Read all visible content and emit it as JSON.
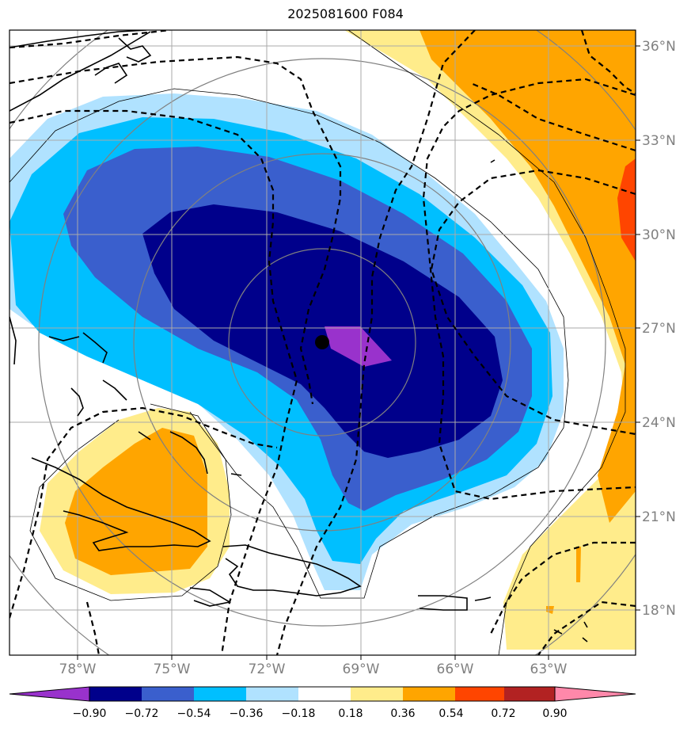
{
  "title": "2025081600 F084",
  "storm_center_marker": "filled-black-dot",
  "map": {
    "lon_range": [
      -81,
      -60.5
    ],
    "lat_range": [
      16.5,
      36.5
    ],
    "lon_ticks": [
      {
        "value": -78,
        "label": "78°W"
      },
      {
        "value": -75,
        "label": "75°W"
      },
      {
        "value": -72,
        "label": "72°W"
      },
      {
        "value": -69,
        "label": "69°W"
      },
      {
        "value": -66,
        "label": "66°W"
      },
      {
        "value": -63,
        "label": "63°W"
      }
    ],
    "lat_ticks": [
      {
        "value": 18,
        "label": "18°N"
      },
      {
        "value": 21,
        "label": "21°N"
      },
      {
        "value": 24,
        "label": "24°N"
      },
      {
        "value": 27,
        "label": "27°N"
      },
      {
        "value": 30,
        "label": "30°N"
      },
      {
        "value": 33,
        "label": "33°N"
      },
      {
        "value": 36,
        "label": "36°N"
      }
    ],
    "grid": true,
    "contour_style": "dashed-black",
    "range_rings": "gray-concentric-circles",
    "coastlines": "black"
  },
  "colorbar": {
    "orientation": "horizontal",
    "extend": "both",
    "levels": [
      "−0.90",
      "−0.72",
      "−0.54",
      "−0.36",
      "−0.18",
      "0.18",
      "0.36",
      "0.54",
      "0.72",
      "0.90"
    ],
    "colors": [
      "#9932CC",
      "#00008B",
      "#3A5FCD",
      "#00BFFF",
      "#B0E2FF",
      "#FFFFFF",
      "#FFEC8B",
      "#FFA500",
      "#FF4500",
      "#B22222",
      "#FF88AA"
    ]
  }
}
